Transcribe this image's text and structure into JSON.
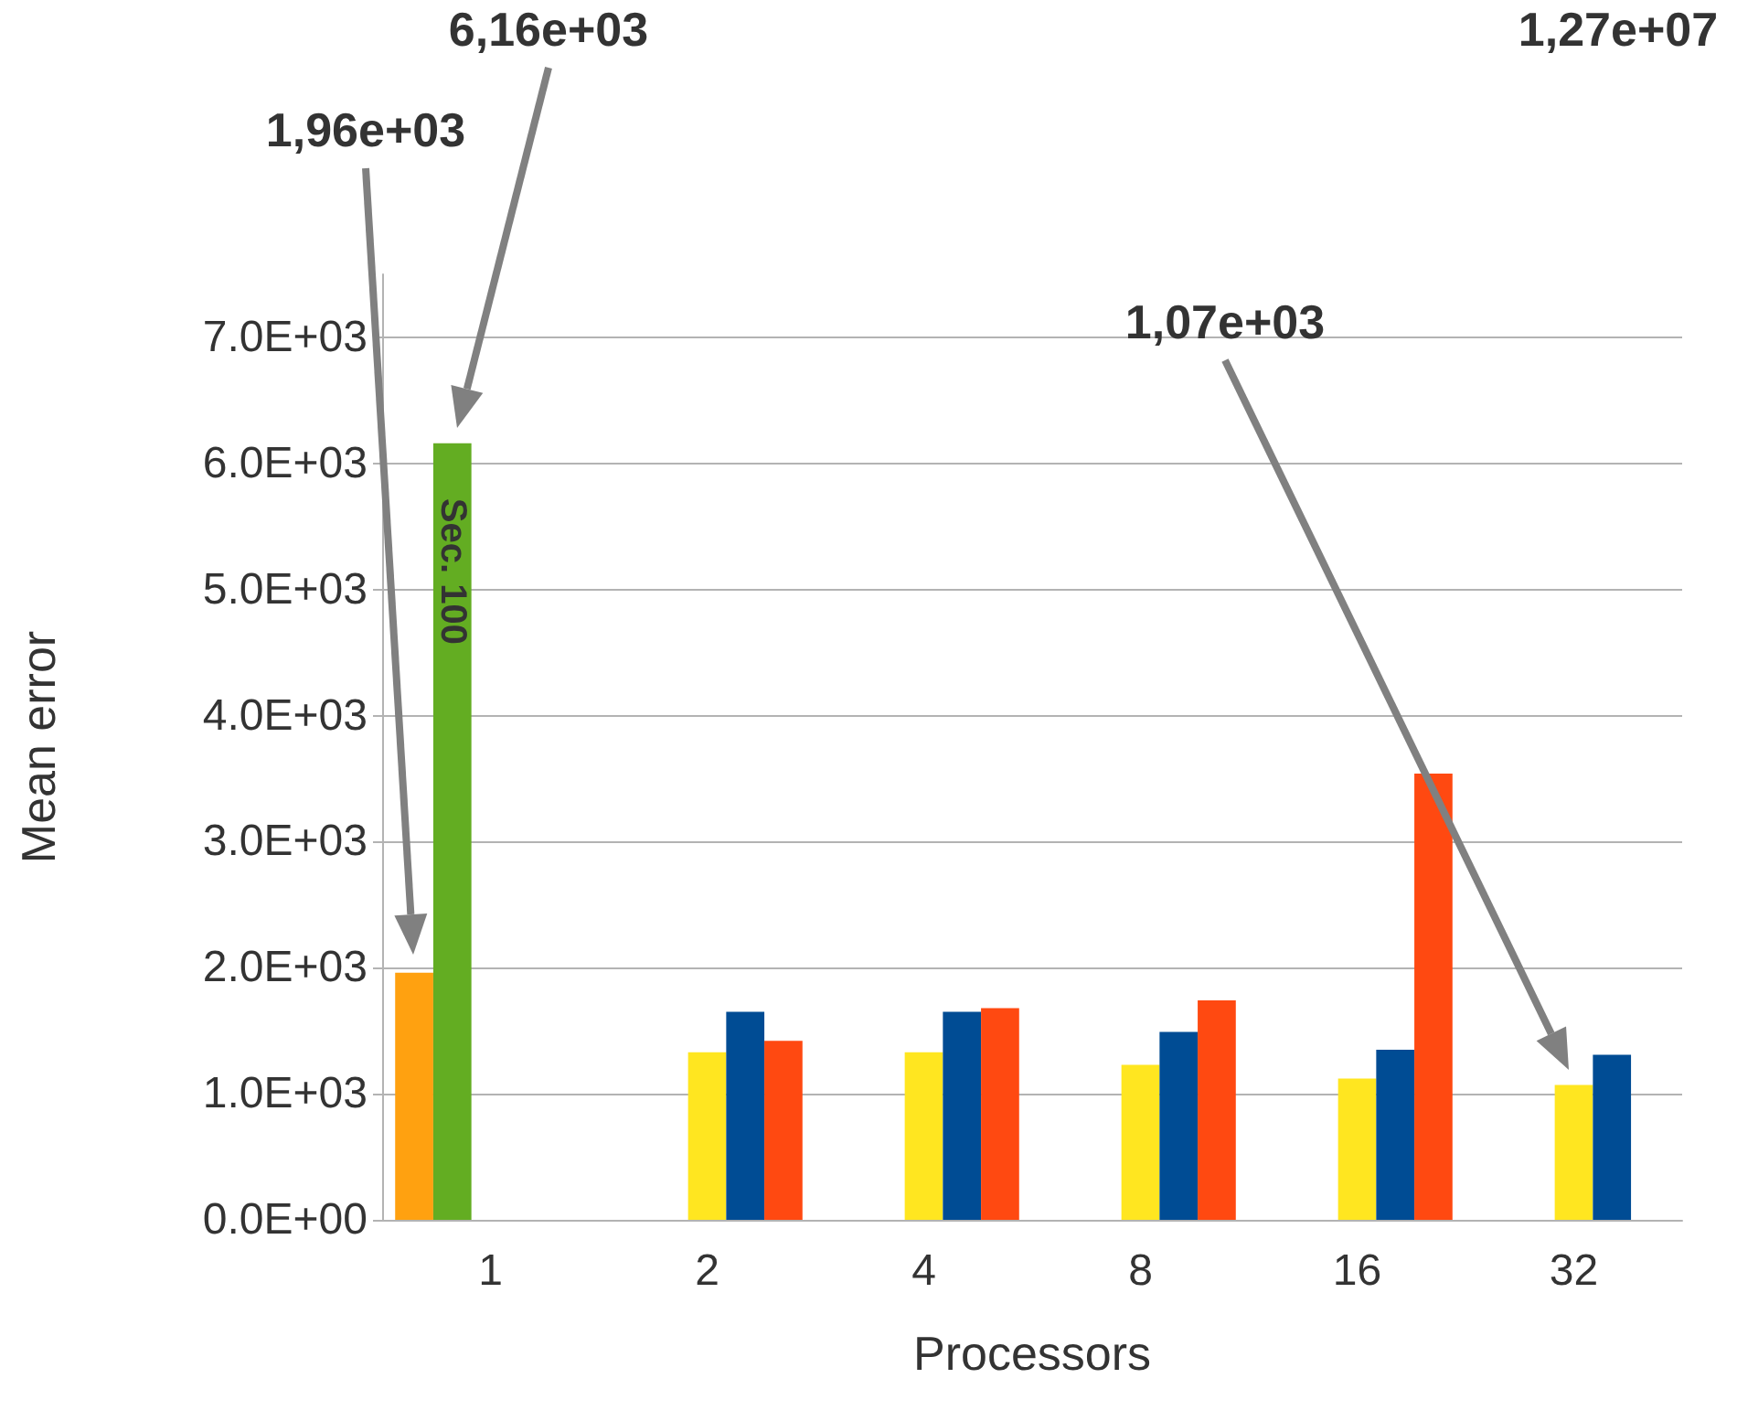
{
  "chart_data": {
    "type": "bar",
    "xlabel": "Processors",
    "ylabel": "Mean error",
    "categories": [
      "1",
      "2",
      "4",
      "8",
      "16",
      "32"
    ],
    "series": [
      {
        "color": "#ffa110",
        "values": [
          1960,
          null,
          null,
          null,
          null,
          null
        ]
      },
      {
        "name": "Sec. 100",
        "color": "#63ad22",
        "values": [
          6160,
          null,
          null,
          null,
          null,
          null
        ]
      },
      {
        "color": "#ffe620",
        "values": [
          null,
          1330,
          1330,
          1230,
          1120,
          1070
        ]
      },
      {
        "color": "#004c94",
        "values": [
          null,
          1650,
          1650,
          1490,
          1350,
          1310
        ]
      },
      {
        "color": "#ff4911",
        "values": [
          null,
          1420,
          1680,
          1740,
          3540,
          null
        ]
      }
    ],
    "ylim": [
      0,
      7500
    ],
    "yticks": [
      {
        "value": 0,
        "label": "0.0E+00"
      },
      {
        "value": 1000,
        "label": "1.0E+03"
      },
      {
        "value": 2000,
        "label": "2.0E+03"
      },
      {
        "value": 3000,
        "label": "3.0E+03"
      },
      {
        "value": 4000,
        "label": "4.0E+03"
      },
      {
        "value": 5000,
        "label": "5.0E+03"
      },
      {
        "value": 6000,
        "label": "6.0E+03"
      },
      {
        "value": 7000,
        "label": "7.0E+03"
      }
    ],
    "grid": "y",
    "annotations": [
      "1,96e+03",
      "6,16e+03",
      "1,07e+03",
      "1,27e+07"
    ]
  }
}
